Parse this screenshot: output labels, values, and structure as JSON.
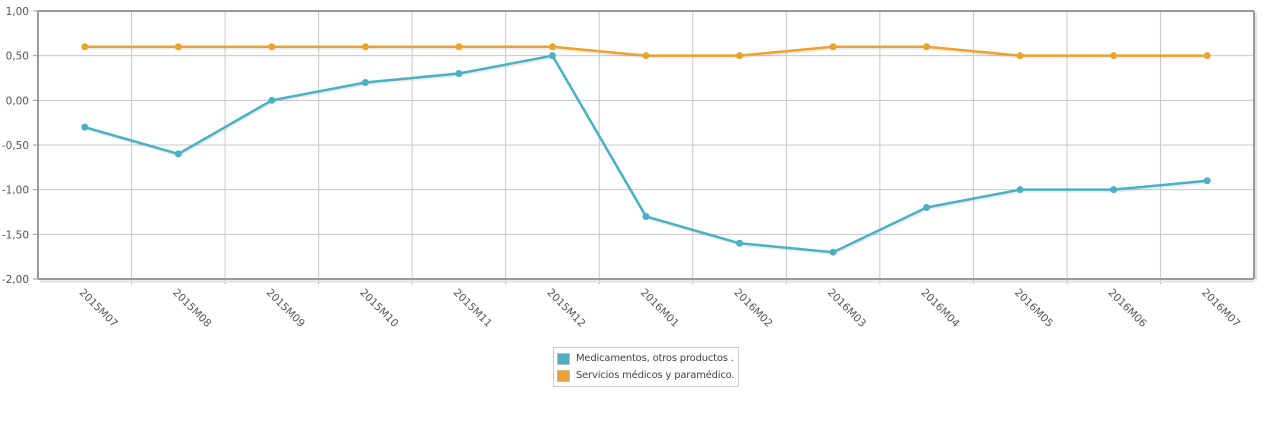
{
  "chart_data": {
    "type": "line",
    "title": "",
    "xlabel": "",
    "ylabel": "",
    "ylim": [
      -2.0,
      1.0
    ],
    "ytick_step": 0.5,
    "yticks": [
      "1,00",
      "0,50",
      "0,00",
      "-0,50",
      "-1,00",
      "-1,50",
      "-2,00"
    ],
    "grid": true,
    "legend_position": "bottom-center",
    "categories": [
      "2015M07",
      "2015M08",
      "2015M09",
      "2015M10",
      "2015M11",
      "2015M12",
      "2016M01",
      "2016M02",
      "2016M03",
      "2016M04",
      "2016M05",
      "2016M06",
      "2016M07"
    ],
    "series": [
      {
        "name": "Medicamentos, otros productos .",
        "color": "#4bb0c4",
        "values": [
          -0.3,
          -0.6,
          0.0,
          0.2,
          0.3,
          0.5,
          -1.3,
          -1.6,
          -1.7,
          -1.2,
          -1.0,
          -1.0,
          -0.9
        ]
      },
      {
        "name": "Servicios médicos y paramédico.",
        "color": "#eca22b",
        "values": [
          0.6,
          0.6,
          0.6,
          0.6,
          0.6,
          0.6,
          0.5,
          0.5,
          0.6,
          0.6,
          0.5,
          0.5,
          0.5
        ]
      }
    ]
  },
  "legend": {
    "items": [
      {
        "label": "Medicamentos, otros productos .",
        "color": "#4bb0c4"
      },
      {
        "label": "Servicios médicos y paramédico.",
        "color": "#eca22b"
      }
    ]
  }
}
